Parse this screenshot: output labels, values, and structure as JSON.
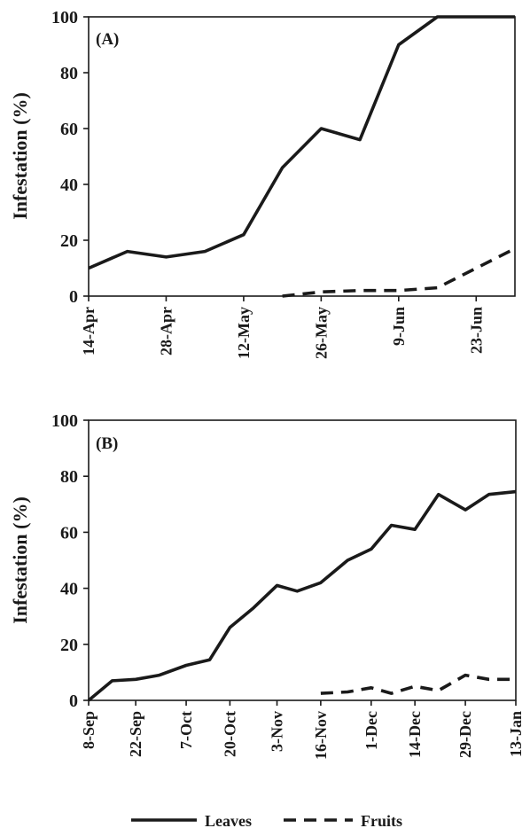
{
  "chart_data": [
    {
      "type": "line",
      "panel_label": "(A)",
      "ylabel": "Infestation (%)",
      "ylim": [
        0,
        100
      ],
      "yticks": [
        0,
        20,
        40,
        60,
        80,
        100
      ],
      "xticks": [
        "14-Apr",
        "28-Apr",
        "12-May",
        "26-May",
        "9-Jun",
        "23-Jun"
      ],
      "grid": false,
      "series": [
        {
          "name": "Leaves",
          "style": "solid",
          "points": [
            [
              "14-Apr",
              10
            ],
            [
              "21-Apr",
              16
            ],
            [
              "28-Apr",
              14
            ],
            [
              "5-May",
              16
            ],
            [
              "12-May",
              22
            ],
            [
              "19-May",
              46
            ],
            [
              "26-May",
              60
            ],
            [
              "2-Jun",
              56
            ],
            [
              "9-Jun",
              90
            ],
            [
              "16-Jun",
              100
            ],
            [
              "23-Jun",
              100
            ],
            [
              "30-Jun",
              100
            ]
          ]
        },
        {
          "name": "Fruits",
          "style": "dashed",
          "points": [
            [
              "19-May",
              0
            ],
            [
              "26-May",
              1.5
            ],
            [
              "2-Jun",
              2
            ],
            [
              "9-Jun",
              2
            ],
            [
              "16-Jun",
              3
            ],
            [
              "23-Jun",
              10
            ],
            [
              "30-Jun",
              17
            ]
          ]
        }
      ]
    },
    {
      "type": "line",
      "panel_label": "(B)",
      "ylabel": "Infestation (%)",
      "ylim": [
        0,
        100
      ],
      "yticks": [
        0,
        20,
        40,
        60,
        80,
        100
      ],
      "xticks": [
        "8-Sep",
        "22-Sep",
        "7-Oct",
        "20-Oct",
        "3-Nov",
        "16-Nov",
        "1-Dec",
        "14-Dec",
        "29-Dec",
        "13-Jan"
      ],
      "grid": false,
      "series": [
        {
          "name": "Leaves",
          "style": "solid",
          "points": [
            [
              "8-Sep",
              0
            ],
            [
              "15-Sep",
              7
            ],
            [
              "22-Sep",
              7.5
            ],
            [
              "29-Sep",
              9
            ],
            [
              "7-Oct",
              12.5
            ],
            [
              "14-Oct",
              14.5
            ],
            [
              "20-Oct",
              26
            ],
            [
              "27-Oct",
              33
            ],
            [
              "3-Nov",
              41
            ],
            [
              "9-Nov",
              39
            ],
            [
              "16-Nov",
              42
            ],
            [
              "24-Nov",
              50
            ],
            [
              "1-Dec",
              54
            ],
            [
              "7-Dec",
              62.5
            ],
            [
              "14-Dec",
              61
            ],
            [
              "21-Dec",
              73.5
            ],
            [
              "29-Dec",
              68
            ],
            [
              "5-Jan",
              73.5
            ],
            [
              "13-Jan",
              74.5
            ]
          ]
        },
        {
          "name": "Fruits",
          "style": "dashed",
          "points": [
            [
              "16-Nov",
              2.5
            ],
            [
              "24-Nov",
              3
            ],
            [
              "1-Dec",
              4.5
            ],
            [
              "7-Dec",
              2.5
            ],
            [
              "14-Dec",
              5
            ],
            [
              "21-Dec",
              3.5
            ],
            [
              "29-Dec",
              9
            ],
            [
              "5-Jan",
              7.5
            ],
            [
              "13-Jan",
              7.5
            ]
          ]
        }
      ]
    }
  ],
  "legend": {
    "placement": "bottom-center",
    "items": [
      {
        "label": "Leaves",
        "style": "solid"
      },
      {
        "label": "Fruits",
        "style": "dashed"
      }
    ]
  }
}
